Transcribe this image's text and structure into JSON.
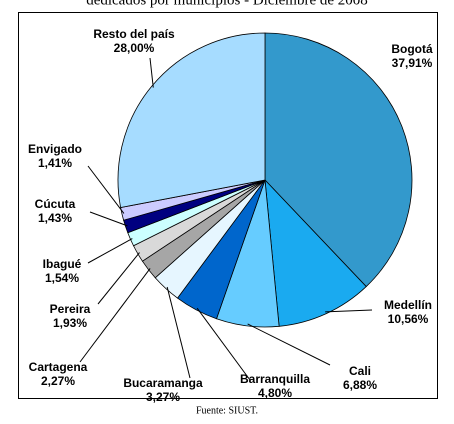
{
  "chart_data": {
    "type": "pie",
    "title": "dedicados por municipios - Diciembre de 2008",
    "source": "Fuente: SIUST.",
    "categories": [
      "Bogotá",
      "Medellín",
      "Cali",
      "Barranquilla",
      "Bucaramanga",
      "Cartagena",
      "Pereira",
      "Ibagué",
      "Cúcuta",
      "Envigado",
      "Resto del país"
    ],
    "values": [
      37.91,
      10.56,
      6.88,
      4.8,
      3.27,
      2.27,
      1.93,
      1.54,
      1.43,
      1.41,
      28.0
    ],
    "value_labels": [
      "37,91%",
      "10,56%",
      "6,88%",
      "4,80%",
      "3,27%",
      "2,27%",
      "1,93%",
      "1,54%",
      "1,43%",
      "1,41%",
      "28,00%"
    ],
    "colors": [
      "#3399cc",
      "#1aaaf0",
      "#66ccff",
      "#0066cc",
      "#e6f6ff",
      "#a6a6a6",
      "#d9d9d9",
      "#ccffff",
      "#000080",
      "#ccccff",
      "#a6dcff"
    ]
  }
}
